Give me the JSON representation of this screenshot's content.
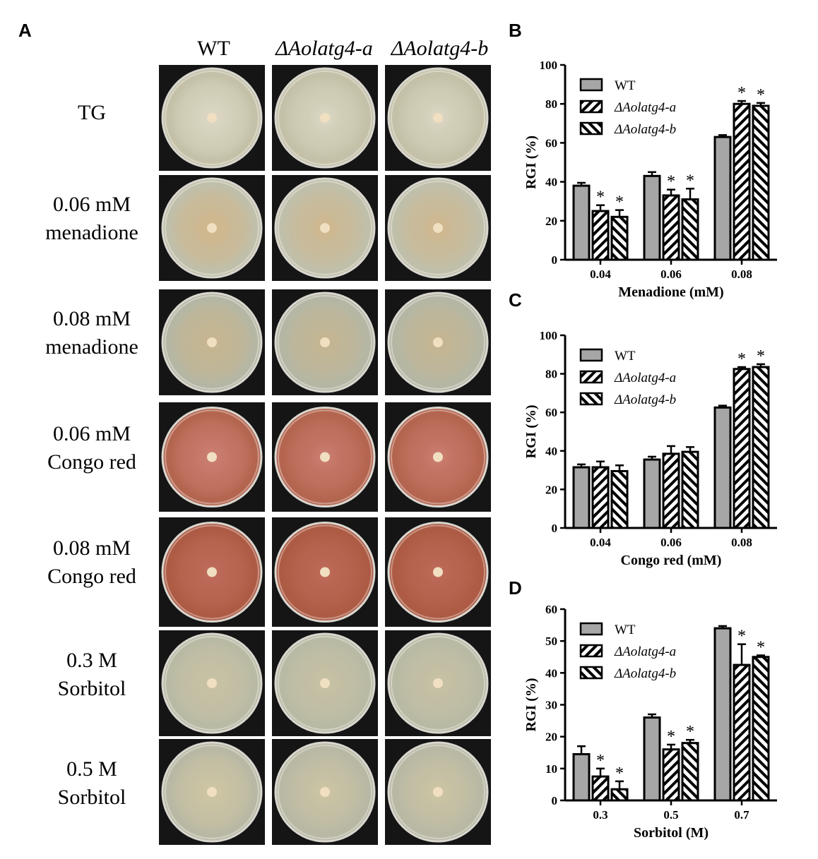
{
  "panel_labels": {
    "a": "A",
    "b": "B",
    "c": "C",
    "d": "D"
  },
  "columns": [
    "WT",
    "ΔAolatg4-a",
    "ΔAolatg4-b"
  ],
  "rows": [
    {
      "lines": [
        "TG"
      ],
      "plate_color": "#c4c1a8",
      "colony_color": "#dcd8c4"
    },
    {
      "lines": [
        "0.06 mM",
        "menadione"
      ],
      "plate_color": "#c0bfaa",
      "colony_color": "#d1b68a"
    },
    {
      "lines": [
        "0.08 mM",
        "menadione"
      ],
      "plate_color": "#b5b7a4",
      "colony_color": "#c8b58e"
    },
    {
      "lines": [
        "0.06 mM",
        "Congo red"
      ],
      "plate_color": "#b4654f",
      "colony_color": "#cc7f72"
    },
    {
      "lines": [
        "0.08 mM",
        "Congo red"
      ],
      "plate_color": "#ad5b44",
      "colony_color": "#bf6b5b"
    },
    {
      "lines": [
        "0.3 M",
        "Sorbitol"
      ],
      "plate_color": "#b9baa4",
      "colony_color": "#c9c2a4"
    },
    {
      "lines": [
        "0.5 M",
        "Sorbitol"
      ],
      "plate_color": "#b8b8a4",
      "colony_color": "#cfc6a3"
    }
  ],
  "chart_data": [
    {
      "panel": "B",
      "type": "bar",
      "categories": [
        "0.04",
        "0.06",
        "0.08"
      ],
      "xlabel": "Menadione (mM)",
      "ylabel": "RGI (%)",
      "ylim": [
        0,
        100
      ],
      "yticks": [
        "0",
        "20",
        "40",
        "60",
        "80",
        "100"
      ],
      "legend_position": "top-left",
      "series": [
        {
          "name": "WT",
          "values": [
            38,
            43,
            63
          ],
          "errors": [
            1.5,
            2,
            1
          ],
          "stars": [
            false,
            false,
            false
          ]
        },
        {
          "name": "ΔAolatg4-a",
          "values": [
            25,
            33,
            80
          ],
          "errors": [
            3,
            3,
            1.5
          ],
          "stars": [
            true,
            true,
            true
          ]
        },
        {
          "name": "ΔAolatg4-b",
          "values": [
            22,
            31,
            79
          ],
          "errors": [
            3.5,
            5.5,
            1.5
          ],
          "stars": [
            true,
            true,
            true
          ]
        }
      ],
      "star_label": "*"
    },
    {
      "panel": "C",
      "type": "bar",
      "categories": [
        "0.04",
        "0.06",
        "0.08"
      ],
      "xlabel": "Congo red (mM)",
      "ylabel": "RGI (%)",
      "ylim": [
        0,
        100
      ],
      "yticks": [
        "0",
        "20",
        "40",
        "60",
        "80",
        "100"
      ],
      "legend_position": "top-left",
      "series": [
        {
          "name": "WT",
          "values": [
            31.5,
            35.5,
            62.5
          ],
          "errors": [
            1.5,
            1.5,
            1
          ],
          "stars": [
            false,
            false,
            false
          ]
        },
        {
          "name": "ΔAolatg4-a",
          "values": [
            31.5,
            38.5,
            82.5
          ],
          "errors": [
            3,
            4,
            1
          ],
          "stars": [
            false,
            false,
            true
          ]
        },
        {
          "name": "ΔAolatg4-b",
          "values": [
            29.5,
            39.5,
            83.5
          ],
          "errors": [
            3,
            2.5,
            1.5
          ],
          "stars": [
            false,
            false,
            true
          ]
        }
      ],
      "star_label": "*"
    },
    {
      "panel": "D",
      "type": "bar",
      "categories": [
        "0.3",
        "0.5",
        "0.7"
      ],
      "xlabel": "Sorbitol (M)",
      "ylabel": "RGI (%)",
      "ylim": [
        0,
        60
      ],
      "yticks": [
        "0",
        "10",
        "20",
        "30",
        "40",
        "50",
        "60"
      ],
      "legend_position": "top-left",
      "series": [
        {
          "name": "WT",
          "values": [
            14.5,
            26,
            54
          ],
          "errors": [
            2.5,
            1,
            0.7
          ],
          "stars": [
            false,
            false,
            false
          ]
        },
        {
          "name": "ΔAolatg4-a",
          "values": [
            7.5,
            16,
            42.5
          ],
          "errors": [
            2.5,
            1.5,
            6.5
          ],
          "stars": [
            true,
            true,
            true
          ]
        },
        {
          "name": "ΔAolatg4-b",
          "values": [
            3.5,
            18,
            45
          ],
          "errors": [
            2.5,
            1,
            0.5
          ],
          "stars": [
            true,
            true,
            true
          ]
        }
      ],
      "star_label": "*"
    }
  ]
}
